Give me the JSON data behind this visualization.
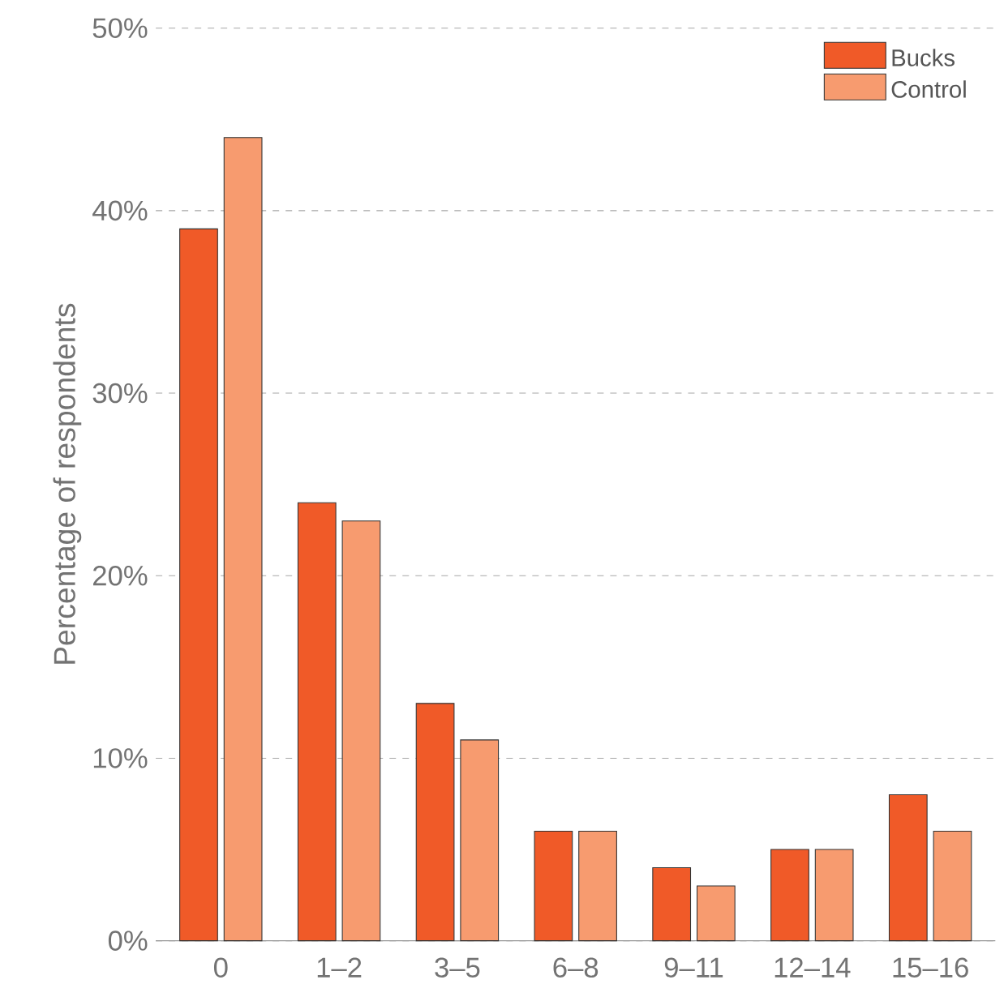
{
  "chart_data": {
    "type": "bar",
    "ylabel": "Percentage of respondents",
    "categories": [
      "0",
      "1–2",
      "3–5",
      "6–8",
      "9–11",
      "12–14",
      "15–16"
    ],
    "series": [
      {
        "name": "Bucks",
        "color": "#f05a28",
        "values": [
          39,
          24,
          13,
          6,
          4,
          5,
          8
        ]
      },
      {
        "name": "Control",
        "color": "#f79b6f",
        "values": [
          44,
          23,
          11,
          6,
          3,
          5,
          6
        ]
      }
    ],
    "ylim": [
      0,
      50
    ],
    "yticks": [
      {
        "value": 0,
        "label": "0%"
      },
      {
        "value": 10,
        "label": "10%"
      },
      {
        "value": 20,
        "label": "20%"
      },
      {
        "value": 30,
        "label": "30%"
      },
      {
        "value": 40,
        "label": "40%"
      },
      {
        "value": 50,
        "label": "50%"
      }
    ],
    "grid": "y",
    "legend": "top right"
  }
}
